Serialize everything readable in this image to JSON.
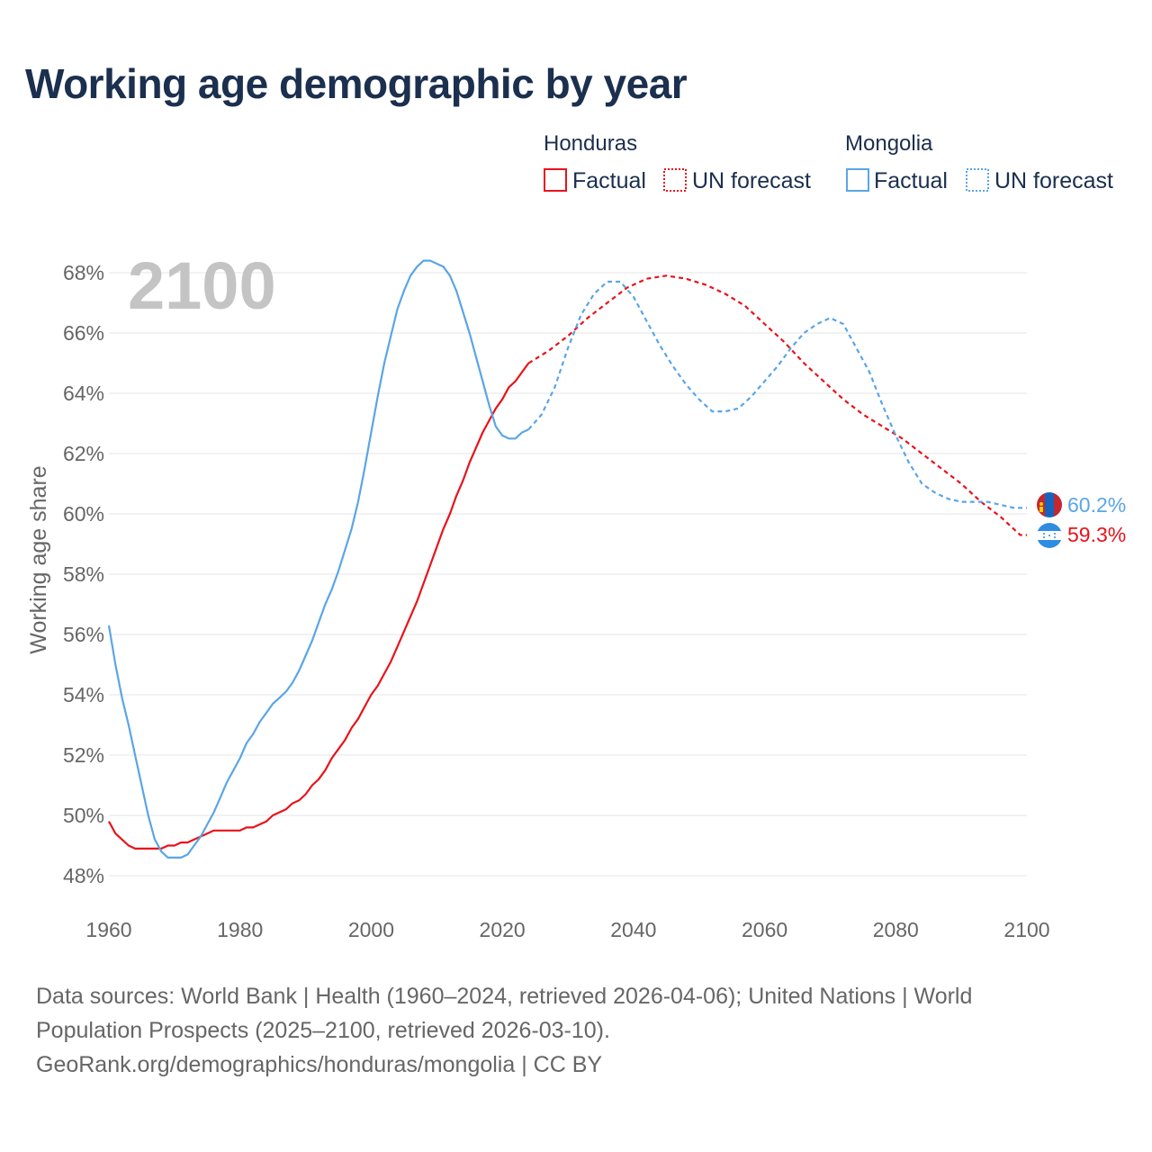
{
  "title": "Working age demographic by year",
  "year_label": "2100",
  "legend": {
    "groups": [
      {
        "country": "Honduras",
        "color": "#e8131a",
        "factual_label": "Factual",
        "forecast_label": "UN forecast"
      },
      {
        "country": "Mongolia",
        "color": "#5aa5e6",
        "factual_label": "Factual",
        "forecast_label": "UN forecast"
      }
    ]
  },
  "end_labels": {
    "mongolia": "60.2%",
    "honduras": "59.3%"
  },
  "sources": {
    "line1": "Data sources: World Bank | Health (1960–2024, retrieved 2026-04-06); United Nations | World",
    "line2": "Population Prospects (2025–2100, retrieved 2026-03-10).",
    "line3": "GeoRank.org/demographics/honduras/mongolia | CC BY"
  },
  "chart_data": {
    "type": "line",
    "title": "Working age demographic by year",
    "xlabel": "",
    "ylabel": "Working age share",
    "xlim": [
      1960,
      2100
    ],
    "ylim": [
      47,
      69
    ],
    "x_ticks": [
      "1960",
      "1980",
      "2000",
      "2020",
      "2040",
      "2060",
      "2080",
      "2100"
    ],
    "y_ticks": [
      "48%",
      "50%",
      "52%",
      "54%",
      "56%",
      "58%",
      "60%",
      "62%",
      "64%",
      "66%",
      "68%"
    ],
    "grid": true,
    "series": [
      {
        "name": "Honduras (Factual)",
        "color": "#e8131a",
        "style": "solid",
        "x": [
          1960,
          1961,
          1962,
          1963,
          1964,
          1965,
          1966,
          1967,
          1968,
          1969,
          1970,
          1971,
          1972,
          1973,
          1974,
          1975,
          1976,
          1977,
          1978,
          1979,
          1980,
          1981,
          1982,
          1983,
          1984,
          1985,
          1986,
          1987,
          1988,
          1989,
          1990,
          1991,
          1992,
          1993,
          1994,
          1995,
          1996,
          1997,
          1998,
          1999,
          2000,
          2001,
          2002,
          2003,
          2004,
          2005,
          2006,
          2007,
          2008,
          2009,
          2010,
          2011,
          2012,
          2013,
          2014,
          2015,
          2016,
          2017,
          2018,
          2019,
          2020,
          2021,
          2022,
          2023,
          2024
        ],
        "y": [
          49.8,
          49.4,
          49.2,
          49.0,
          48.9,
          48.9,
          48.9,
          48.9,
          48.9,
          49.0,
          49.0,
          49.1,
          49.1,
          49.2,
          49.3,
          49.4,
          49.5,
          49.5,
          49.5,
          49.5,
          49.5,
          49.6,
          49.6,
          49.7,
          49.8,
          50.0,
          50.1,
          50.2,
          50.4,
          50.5,
          50.7,
          51.0,
          51.2,
          51.5,
          51.9,
          52.2,
          52.5,
          52.9,
          53.2,
          53.6,
          54.0,
          54.3,
          54.7,
          55.1,
          55.6,
          56.1,
          56.6,
          57.1,
          57.7,
          58.3,
          58.9,
          59.5,
          60.0,
          60.6,
          61.1,
          61.7,
          62.2,
          62.7,
          63.1,
          63.5,
          63.8,
          64.2,
          64.4,
          64.7,
          65.0
        ]
      },
      {
        "name": "Honduras (UN forecast)",
        "color": "#e8131a",
        "style": "dashed",
        "x": [
          2024,
          2027,
          2030,
          2033,
          2036,
          2039,
          2042,
          2045,
          2048,
          2051,
          2054,
          2057,
          2060,
          2063,
          2066,
          2069,
          2072,
          2075,
          2078,
          2081,
          2084,
          2087,
          2090,
          2093,
          2096,
          2099,
          2100
        ],
        "y": [
          65.0,
          65.4,
          65.9,
          66.5,
          67.0,
          67.5,
          67.8,
          67.9,
          67.8,
          67.6,
          67.3,
          66.9,
          66.3,
          65.7,
          65.0,
          64.4,
          63.8,
          63.3,
          62.9,
          62.5,
          62.0,
          61.5,
          61.0,
          60.4,
          59.9,
          59.3,
          59.3
        ]
      },
      {
        "name": "Mongolia (Factual)",
        "color": "#5aa5e6",
        "style": "solid",
        "x": [
          1960,
          1961,
          1962,
          1963,
          1964,
          1965,
          1966,
          1967,
          1968,
          1969,
          1970,
          1971,
          1972,
          1973,
          1974,
          1975,
          1976,
          1977,
          1978,
          1979,
          1980,
          1981,
          1982,
          1983,
          1984,
          1985,
          1986,
          1987,
          1988,
          1989,
          1990,
          1991,
          1992,
          1993,
          1994,
          1995,
          1996,
          1997,
          1998,
          1999,
          2000,
          2001,
          2002,
          2003,
          2004,
          2005,
          2006,
          2007,
          2008,
          2009,
          2010,
          2011,
          2012,
          2013,
          2014,
          2015,
          2016,
          2017,
          2018,
          2019,
          2020,
          2021,
          2022,
          2023,
          2024
        ],
        "y": [
          56.3,
          55.0,
          53.9,
          53.0,
          52.0,
          51.0,
          50.0,
          49.2,
          48.8,
          48.6,
          48.6,
          48.6,
          48.7,
          49.0,
          49.3,
          49.7,
          50.1,
          50.6,
          51.1,
          51.5,
          51.9,
          52.4,
          52.7,
          53.1,
          53.4,
          53.7,
          53.9,
          54.1,
          54.4,
          54.8,
          55.3,
          55.8,
          56.4,
          57.0,
          57.5,
          58.1,
          58.8,
          59.5,
          60.4,
          61.5,
          62.7,
          63.9,
          65.0,
          65.9,
          66.8,
          67.4,
          67.9,
          68.2,
          68.4,
          68.4,
          68.3,
          68.2,
          67.9,
          67.4,
          66.7,
          66.0,
          65.2,
          64.4,
          63.6,
          62.9,
          62.6,
          62.5,
          62.5,
          62.7,
          62.8
        ]
      },
      {
        "name": "Mongolia (UN forecast)",
        "color": "#5aa5e6",
        "style": "dashed",
        "x": [
          2024,
          2026,
          2028,
          2030,
          2032,
          2034,
          2036,
          2038,
          2040,
          2042,
          2044,
          2046,
          2048,
          2050,
          2052,
          2054,
          2056,
          2058,
          2060,
          2062,
          2064,
          2066,
          2068,
          2070,
          2072,
          2074,
          2076,
          2078,
          2080,
          2082,
          2084,
          2086,
          2088,
          2090,
          2092,
          2094,
          2096,
          2098,
          2100
        ],
        "y": [
          62.8,
          63.3,
          64.2,
          65.5,
          66.6,
          67.3,
          67.7,
          67.7,
          67.2,
          66.4,
          65.6,
          64.9,
          64.3,
          63.8,
          63.4,
          63.4,
          63.5,
          63.9,
          64.4,
          64.9,
          65.5,
          66.0,
          66.3,
          66.5,
          66.3,
          65.5,
          64.7,
          63.6,
          62.6,
          61.7,
          61.0,
          60.7,
          60.5,
          60.4,
          60.4,
          60.4,
          60.3,
          60.2,
          60.2
        ]
      }
    ]
  }
}
